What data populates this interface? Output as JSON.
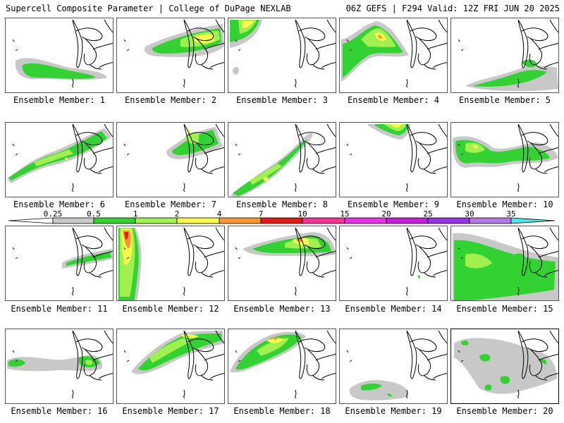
{
  "header": {
    "left": "Supercell Composite Parameter | College of DuPage NEXLAB",
    "right": "06Z GEFS | F294 Valid: 12Z FRI JUN 20 2025"
  },
  "legend": {
    "ticks": [
      "0.25",
      "0.5",
      "1",
      "2",
      "4",
      "7",
      "10",
      "15",
      "20",
      "25",
      "30",
      "35"
    ],
    "colors": [
      "#c8c8c8",
      "#32d232",
      "#a0f050",
      "#fafa4b",
      "#fa9632",
      "#e61919",
      "#fa3296",
      "#e632e6",
      "#c81edc",
      "#9632e6",
      "#b478e6",
      "#4be6e6"
    ]
  },
  "members": [
    {
      "label": "Ensemble Member: 1"
    },
    {
      "label": "Ensemble Member: 2"
    },
    {
      "label": "Ensemble Member: 3"
    },
    {
      "label": "Ensemble Member: 4"
    },
    {
      "label": "Ensemble Member: 5"
    },
    {
      "label": "Ensemble Member: 6"
    },
    {
      "label": "Ensemble Member: 7"
    },
    {
      "label": "Ensemble Member: 8"
    },
    {
      "label": "Ensemble Member: 9"
    },
    {
      "label": "Ensemble Member: 10"
    },
    {
      "label": "Ensemble Member: 11"
    },
    {
      "label": "Ensemble Member: 12"
    },
    {
      "label": "Ensemble Member: 13"
    },
    {
      "label": "Ensemble Member: 14"
    },
    {
      "label": "Ensemble Member: 15"
    },
    {
      "label": "Ensemble Member: 16"
    },
    {
      "label": "Ensemble Member: 17"
    },
    {
      "label": "Ensemble Member: 18"
    },
    {
      "label": "Ensemble Member: 19"
    },
    {
      "label": "Ensemble Member: 20"
    }
  ]
}
